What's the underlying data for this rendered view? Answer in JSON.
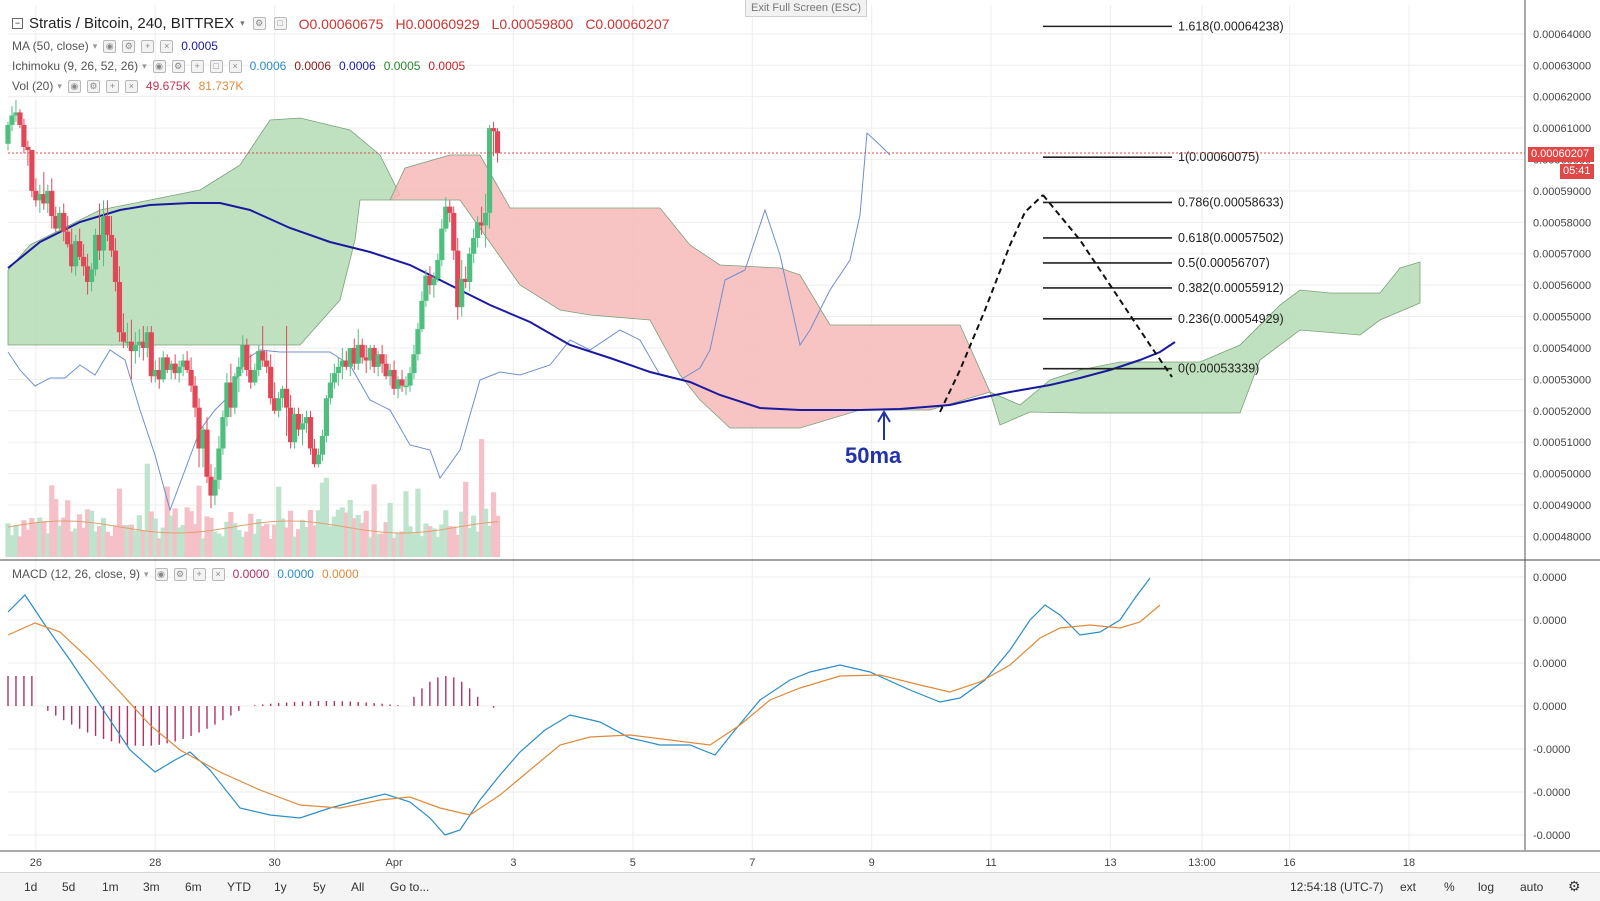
{
  "window": {
    "exit_full_screen": "Exit Full Screen (ESC)"
  },
  "header": {
    "symbol": "Stratis / Bitcoin, 240, BITTREX",
    "ohlc": {
      "o": "O0.00060675",
      "h": "H0.00060929",
      "l": "L0.00059800",
      "c": "C0.00060207"
    }
  },
  "indicators": {
    "ma": {
      "label": "MA (50, close)",
      "value": "0.0005",
      "color": "#1a1aa0"
    },
    "ichimoku": {
      "label": "Ichimoku (9, 26, 52, 26)",
      "values": [
        "0.0006",
        "0.0006",
        "0.0006",
        "0.0005",
        "0.0005"
      ],
      "colors": [
        "#2b8ec9",
        "#8b1a1a",
        "#1a1aa0",
        "#2a8a2a",
        "#cc2222"
      ]
    },
    "vol": {
      "label": "Vol (20)",
      "values": [
        "49.675K",
        "81.737K"
      ],
      "colors": [
        "#cc3355",
        "#e08a3a"
      ]
    },
    "macd": {
      "label": "MACD (12, 26, close, 9)",
      "values": [
        "0.0000",
        "0.0000",
        "0.0000"
      ],
      "colors": [
        "#b0306a",
        "#2b8ec9",
        "#e08a3a"
      ]
    }
  },
  "price_tag": {
    "price": "0.00060207",
    "countdown": "05:41"
  },
  "annotation": "50ma",
  "timeframes": [
    "1d",
    "5d",
    "1m",
    "3m",
    "6m",
    "YTD",
    "1y",
    "5y",
    "All"
  ],
  "goto": "Go to...",
  "bottom_right": {
    "time": "12:54:18 (UTC-7)",
    "ext": "ext",
    "percent": "%",
    "log": "log",
    "auto": "auto"
  },
  "colors": {
    "up": "#4fbf7f",
    "down": "#e04858",
    "ma": "#1a1aa0",
    "cloud_green": "#b4dcb4",
    "cloud_red": "#f7b8b8",
    "conv": "#6f8fcf",
    "fib": "#222222"
  },
  "chart_data": {
    "type": "candlestick",
    "price_axis": [
      "0.00064000",
      "0.00063000",
      "0.00062000",
      "0.00061000",
      "0.00060000",
      "0.00059000",
      "0.00058000",
      "0.00057000",
      "0.00056000",
      "0.00055000",
      "0.00054000",
      "0.00053000",
      "0.00052000",
      "0.00051000",
      "0.00050000",
      "0.00049000",
      "0.00048000"
    ],
    "ylim": [
      0.000476,
      0.000646
    ],
    "x_axis": [
      {
        "label": "26",
        "i": 7
      },
      {
        "label": "28",
        "i": 37
      },
      {
        "label": "30",
        "i": 67
      },
      {
        "label": "Apr",
        "i": 97
      },
      {
        "label": "3",
        "i": 127
      },
      {
        "label": "5",
        "i": 157
      },
      {
        "label": "7",
        "i": 187
      },
      {
        "label": "9",
        "i": 217
      },
      {
        "label": "11",
        "i": 247
      },
      {
        "label": "13",
        "i": 277
      },
      {
        "label": "13:00",
        "i": 300
      },
      {
        "label": "16",
        "i": 322
      },
      {
        "label": "18",
        "i": 352
      }
    ],
    "x_range": [
      0,
      373
    ],
    "candles": [
      [
        0,
        0.000605,
        0.000612,
        0.000603,
        0.000611
      ],
      [
        1,
        0.000611,
        0.000617,
        0.000609,
        0.000614
      ],
      [
        2,
        0.000614,
        0.000619,
        0.000612,
        0.000615
      ],
      [
        3,
        0.000615,
        0.000616,
        0.00061,
        0.000611
      ],
      [
        4,
        0.000611,
        0.000613,
        0.000602,
        0.000604
      ],
      [
        5,
        0.000604,
        0.000606,
        0.000598,
        0.000603
      ],
      [
        6,
        0.000603,
        0.000603,
        0.000588,
        0.00059
      ],
      [
        7,
        0.00059,
        0.000594,
        0.000585,
        0.000587
      ],
      [
        8,
        0.000587,
        0.000592,
        0.000583,
        0.000589
      ],
      [
        9,
        0.000589,
        0.000596,
        0.000584,
        0.000586
      ],
      [
        10,
        0.000586,
        0.000592,
        0.000583,
        0.00059
      ],
      [
        11,
        0.00059,
        0.000594,
        0.000578,
        0.000582
      ],
      [
        12,
        0.000582,
        0.000585,
        0.000577,
        0.000578
      ],
      [
        13,
        0.000578,
        0.000585,
        0.000577,
        0.000583
      ],
      [
        14,
        0.000583,
        0.000586,
        0.000574,
        0.000577
      ],
      [
        15,
        0.000577,
        0.000582,
        0.000572,
        0.000573
      ],
      [
        16,
        0.000573,
        0.000578,
        0.000564,
        0.000566
      ],
      [
        17,
        0.000566,
        0.000576,
        0.000563,
        0.000574
      ],
      [
        18,
        0.000574,
        0.000578,
        0.000568,
        0.000569
      ],
      [
        19,
        0.000569,
        0.000573,
        0.000563,
        0.000566
      ],
      [
        20,
        0.000566,
        0.00057,
        0.000557,
        0.000561
      ],
      [
        21,
        0.000561,
        0.000567,
        0.000558,
        0.000565
      ],
      [
        22,
        0.000565,
        0.000578,
        0.000563,
        0.000576
      ],
      [
        23,
        0.000576,
        0.000586,
        0.000568,
        0.000571
      ],
      [
        24,
        0.000571,
        0.000587,
        0.000566,
        0.000582
      ],
      [
        25,
        0.000582,
        0.000587,
        0.000574,
        0.000576
      ],
      [
        26,
        0.000576,
        0.000582,
        0.000569,
        0.000571
      ],
      [
        27,
        0.000571,
        0.000575,
        0.000558,
        0.000561
      ],
      [
        28,
        0.000561,
        0.000566,
        0.000542,
        0.000545
      ],
      [
        29,
        0.000545,
        0.000551,
        0.00054,
        0.000542
      ],
      [
        30,
        0.000542,
        0.000548,
        0.00054,
        0.000542
      ],
      [
        31,
        0.000542,
        0.000549,
        0.00053,
        0.000539
      ],
      [
        32,
        0.000539,
        0.000545,
        0.000535,
        0.000541
      ],
      [
        33,
        0.000541,
        0.000546,
        0.000537,
        0.000542
      ],
      [
        34,
        0.000542,
        0.000547,
        0.000536,
        0.00054
      ],
      [
        35,
        0.00054,
        0.000547,
        0.000537,
        0.000545
      ],
      [
        36,
        0.000545,
        0.000547,
        0.000529,
        0.000531
      ],
      [
        37,
        0.000531,
        0.000536,
        0.000529,
        0.000533
      ],
      [
        38,
        0.000533,
        0.000537,
        0.000527,
        0.00053
      ],
      [
        39,
        0.00053,
        0.000539,
        0.000529,
        0.000537
      ],
      [
        40,
        0.000537,
        0.000538,
        0.000532,
        0.000533
      ],
      [
        41,
        0.000533,
        0.000536,
        0.00053,
        0.000535
      ],
      [
        42,
        0.000535,
        0.000538,
        0.00053,
        0.000532
      ],
      [
        43,
        0.000532,
        0.000536,
        0.000529,
        0.000534
      ],
      [
        44,
        0.000534,
        0.000538,
        0.000531,
        0.000536
      ],
      [
        45,
        0.000536,
        0.000539,
        0.000532,
        0.000533
      ],
      [
        46,
        0.000533,
        0.000537,
        0.000526,
        0.000528
      ],
      [
        47,
        0.000528,
        0.000531,
        0.000518,
        0.000521
      ],
      [
        48,
        0.000521,
        0.000524,
        0.000502,
        0.000508
      ],
      [
        49,
        0.000508,
        0.000515,
        0.000502,
        0.000514
      ],
      [
        50,
        0.000514,
        0.000518,
        0.000497,
        0.000499
      ],
      [
        51,
        0.000499,
        0.000503,
        0.000489,
        0.000493
      ],
      [
        52,
        0.000493,
        0.000502,
        0.00049,
        0.000498
      ],
      [
        53,
        0.000498,
        0.000512,
        0.000495,
        0.000508
      ],
      [
        54,
        0.000508,
        0.00052,
        0.000506,
        0.000518
      ],
      [
        55,
        0.000518,
        0.000532,
        0.000515,
        0.000529
      ],
      [
        56,
        0.000529,
        0.000535,
        0.000518,
        0.000521
      ],
      [
        57,
        0.000521,
        0.000532,
        0.000519,
        0.000531
      ],
      [
        58,
        0.000531,
        0.000537,
        0.000526,
        0.000534
      ],
      [
        59,
        0.000534,
        0.000544,
        0.000532,
        0.000541
      ],
      [
        60,
        0.000541,
        0.000543,
        0.000531,
        0.000533
      ],
      [
        61,
        0.000533,
        0.000538,
        0.000527,
        0.000529
      ],
      [
        62,
        0.000529,
        0.000535,
        0.000528,
        0.000533
      ],
      [
        63,
        0.000533,
        0.000541,
        0.000531,
        0.000539
      ],
      [
        64,
        0.000539,
        0.000547,
        0.000534,
        0.000536
      ],
      [
        65,
        0.000536,
        0.000539,
        0.000532,
        0.000534
      ],
      [
        66,
        0.000534,
        0.000538,
        0.000522,
        0.000524
      ],
      [
        67,
        0.000524,
        0.000529,
        0.000519,
        0.00052
      ],
      [
        68,
        0.00052,
        0.000526,
        0.000518,
        0.000524
      ],
      [
        69,
        0.000524,
        0.000528,
        0.000521,
        0.000527
      ],
      [
        70,
        0.000527,
        0.000547,
        0.000512,
        0.000521
      ],
      [
        71,
        0.000521,
        0.000525,
        0.000508,
        0.00051
      ],
      [
        72,
        0.00051,
        0.000521,
        0.000508,
        0.000519
      ],
      [
        73,
        0.000519,
        0.000521,
        0.000512,
        0.000514
      ],
      [
        74,
        0.000514,
        0.000519,
        0.000509,
        0.000516
      ],
      [
        75,
        0.000516,
        0.00052,
        0.000513,
        0.000518
      ],
      [
        76,
        0.000518,
        0.00052,
        0.000506,
        0.000508
      ],
      [
        77,
        0.000508,
        0.000511,
        0.000502,
        0.000503
      ],
      [
        78,
        0.000503,
        0.000508,
        0.000502,
        0.000506
      ],
      [
        79,
        0.000506,
        0.000514,
        0.000504,
        0.000512
      ],
      [
        80,
        0.000512,
        0.000525,
        0.00051,
        0.000524
      ],
      [
        81,
        0.000524,
        0.000532,
        0.000522,
        0.000529
      ],
      [
        82,
        0.000529,
        0.000535,
        0.000527,
        0.000532
      ],
      [
        83,
        0.000532,
        0.000537,
        0.000528,
        0.000534
      ],
      [
        84,
        0.000534,
        0.00054,
        0.00053,
        0.000536
      ],
      [
        85,
        0.000536,
        0.000539,
        0.000533,
        0.000534
      ],
      [
        86,
        0.000534,
        0.00054,
        0.000531,
        0.00054
      ],
      [
        87,
        0.00054,
        0.000543,
        0.000533,
        0.000535
      ],
      [
        88,
        0.000535,
        0.000546,
        0.000533,
        0.000541
      ],
      [
        89,
        0.000541,
        0.000543,
        0.000535,
        0.000537
      ],
      [
        90,
        0.000537,
        0.000541,
        0.000532,
        0.000536
      ],
      [
        91,
        0.000536,
        0.000541,
        0.000533,
        0.00054
      ],
      [
        92,
        0.00054,
        0.000541,
        0.000532,
        0.000534
      ],
      [
        93,
        0.000534,
        0.000539,
        0.000531,
        0.000538
      ],
      [
        94,
        0.000538,
        0.000541,
        0.000532,
        0.000535
      ],
      [
        95,
        0.000535,
        0.000538,
        0.00053,
        0.000531
      ],
      [
        96,
        0.000531,
        0.000535,
        0.000528,
        0.000533
      ],
      [
        97,
        0.000533,
        0.000536,
        0.000525,
        0.000527
      ]
    ],
    "candles_b": [
      [
        98,
        0.000527,
        0.000531,
        0.000524,
        0.00053
      ],
      [
        99,
        0.00053,
        0.000533,
        0.000526,
        0.000528
      ],
      [
        100,
        0.000528,
        0.000531,
        0.000525,
        0.000528
      ],
      [
        101,
        0.000528,
        0.000534,
        0.000526,
        0.000532
      ],
      [
        102,
        0.000532,
        0.000541,
        0.00053,
        0.000538
      ],
      [
        103,
        0.000538,
        0.000548,
        0.000536,
        0.000546
      ],
      [
        104,
        0.000546,
        0.000558,
        0.000545,
        0.000555
      ],
      [
        105,
        0.000555,
        0.000565,
        0.000553,
        0.000563
      ],
      [
        106,
        0.000563,
        0.000566,
        0.000557,
        0.00056
      ],
      [
        107,
        0.00056,
        0.000564,
        0.000556,
        0.000562
      ],
      [
        108,
        0.000562,
        0.00057,
        0.000561,
        0.000568
      ],
      [
        109,
        0.000568,
        0.000581,
        0.000566,
        0.000578
      ],
      [
        110,
        0.000578,
        0.000588,
        0.000577,
        0.000585
      ],
      [
        111,
        0.000585,
        0.000587,
        0.00058,
        0.000583
      ],
      [
        112,
        0.000583,
        0.000585,
        0.000568,
        0.000571
      ],
      [
        113,
        0.000571,
        0.000575,
        0.000549,
        0.000553
      ],
      [
        114,
        0.000553,
        0.000568,
        0.00055,
        0.000562
      ],
      [
        115,
        0.000562,
        0.000566,
        0.000559,
        0.000561
      ],
      [
        116,
        0.000561,
        0.000572,
        0.000558,
        0.00057
      ],
      [
        117,
        0.00057,
        0.000578,
        0.000567,
        0.000575
      ],
      [
        118,
        0.000575,
        0.000582,
        0.000572,
        0.00058
      ],
      [
        119,
        0.00058,
        0.000585,
        0.000576,
        0.000579
      ],
      [
        120,
        0.000579,
        0.000589,
        0.000572,
        0.000583
      ],
      [
        121,
        0.000583,
        0.000611,
        0.000578,
        0.00061
      ],
      [
        122,
        0.00061,
        0.000612,
        0.000601,
        0.000609
      ],
      [
        123,
        0.000609,
        0.00061,
        0.000599,
        0.000602
      ]
    ],
    "volume_axis": [
      0,
      80000
    ],
    "fib_levels": [
      {
        "ratio": "1.618",
        "price": 0.00064238,
        "label": "1.618(0.00064238)"
      },
      {
        "ratio": "1",
        "price": 0.00060075,
        "label": "1(0.00060075)"
      },
      {
        "ratio": "0.786",
        "price": 0.00058633,
        "label": "0.786(0.00058633)"
      },
      {
        "ratio": "0.618",
        "price": 0.00057502,
        "label": "0.618(0.00057502)"
      },
      {
        "ratio": "0.5",
        "price": 0.00056707,
        "label": "0.5(0.00056707)"
      },
      {
        "ratio": "0.382",
        "price": 0.00055912,
        "label": "0.382(0.00055912)"
      },
      {
        "ratio": "0.236",
        "price": 0.00054929,
        "label": "0.236(0.00054929)"
      },
      {
        "ratio": "0",
        "price": 0.00053339,
        "label": "0(0.00053339)"
      }
    ],
    "macd_axis": [
      "0.0000",
      "0.0000",
      "0.0000",
      "0.0000",
      "-0.0000",
      "-0.0000",
      "-0.0000"
    ]
  }
}
